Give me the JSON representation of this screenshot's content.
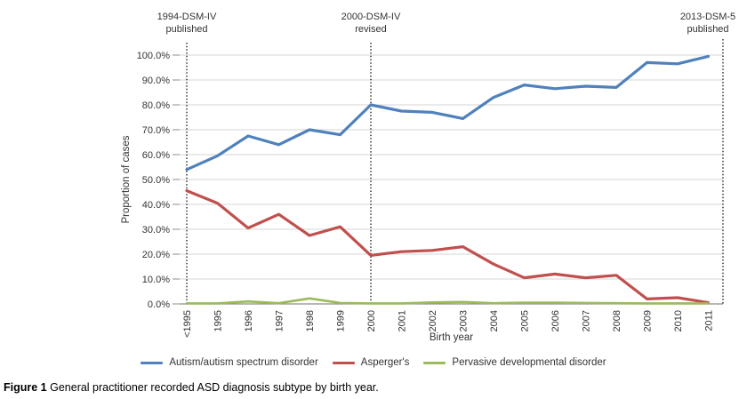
{
  "figure": {
    "caption_label": "Figure 1",
    "caption_text": "General practitioner recorded ASD diagnosis subtype by birth year."
  },
  "chart_data": {
    "type": "line",
    "title": "",
    "xlabel": "Birth year",
    "ylabel": "Proportion of cases",
    "ylim": [
      0,
      100
    ],
    "ytick_step": 10,
    "grid": "horizontal",
    "legend_position": "bottom",
    "ytick_labels": [
      "0.0%",
      "10.0%",
      "20.0%",
      "30.0%",
      "40.0%",
      "50.0%",
      "60.0%",
      "70.0%",
      "80.0%",
      "90.0%",
      "100.0%"
    ],
    "categories": [
      "<1995",
      "1995",
      "1996",
      "1997",
      "1998",
      "1999",
      "2000",
      "2001",
      "2002",
      "2003",
      "2004",
      "2005",
      "2006",
      "2007",
      "2008",
      "2009",
      "2010",
      "2011"
    ],
    "series": [
      {
        "name": "Autism/autism spectrum disorder",
        "color": "#4F81BD",
        "values": [
          54,
          59.5,
          67.5,
          64,
          70,
          68,
          80,
          77.5,
          77,
          74.5,
          83,
          88,
          86.5,
          87.5,
          87,
          97,
          96.5,
          99.5
        ]
      },
      {
        "name": "Asperger's",
        "color": "#C0504D",
        "values": [
          45.5,
          40.5,
          30.5,
          36,
          27.5,
          31,
          19.5,
          21,
          21.5,
          23,
          16,
          10.5,
          12,
          10.5,
          11.5,
          2,
          2.5,
          0.5
        ]
      },
      {
        "name": "Pervasive developmental disorder",
        "color": "#9BBB59",
        "values": [
          0.2,
          0.2,
          1,
          0.3,
          2.2,
          0.4,
          0.2,
          0.2,
          0.6,
          0.8,
          0.3,
          0.5,
          0.5,
          0.4,
          0.3,
          0.2,
          0.2,
          0.2
        ]
      }
    ],
    "annotations": [
      {
        "line1": "1994-DSM-IV",
        "line2": "published",
        "anchor": "category",
        "category_index": 0
      },
      {
        "line1": "2000-DSM-IV",
        "line2": "revised",
        "anchor": "category",
        "category_index": 6
      },
      {
        "line1": "2013-DSM-5",
        "line2": "published",
        "anchor": "right_edge"
      }
    ],
    "colors": {
      "gridline": "#D6D6D6",
      "axis": "#8C8C8C",
      "annotation_line": "#000000",
      "text": "#333333"
    }
  }
}
